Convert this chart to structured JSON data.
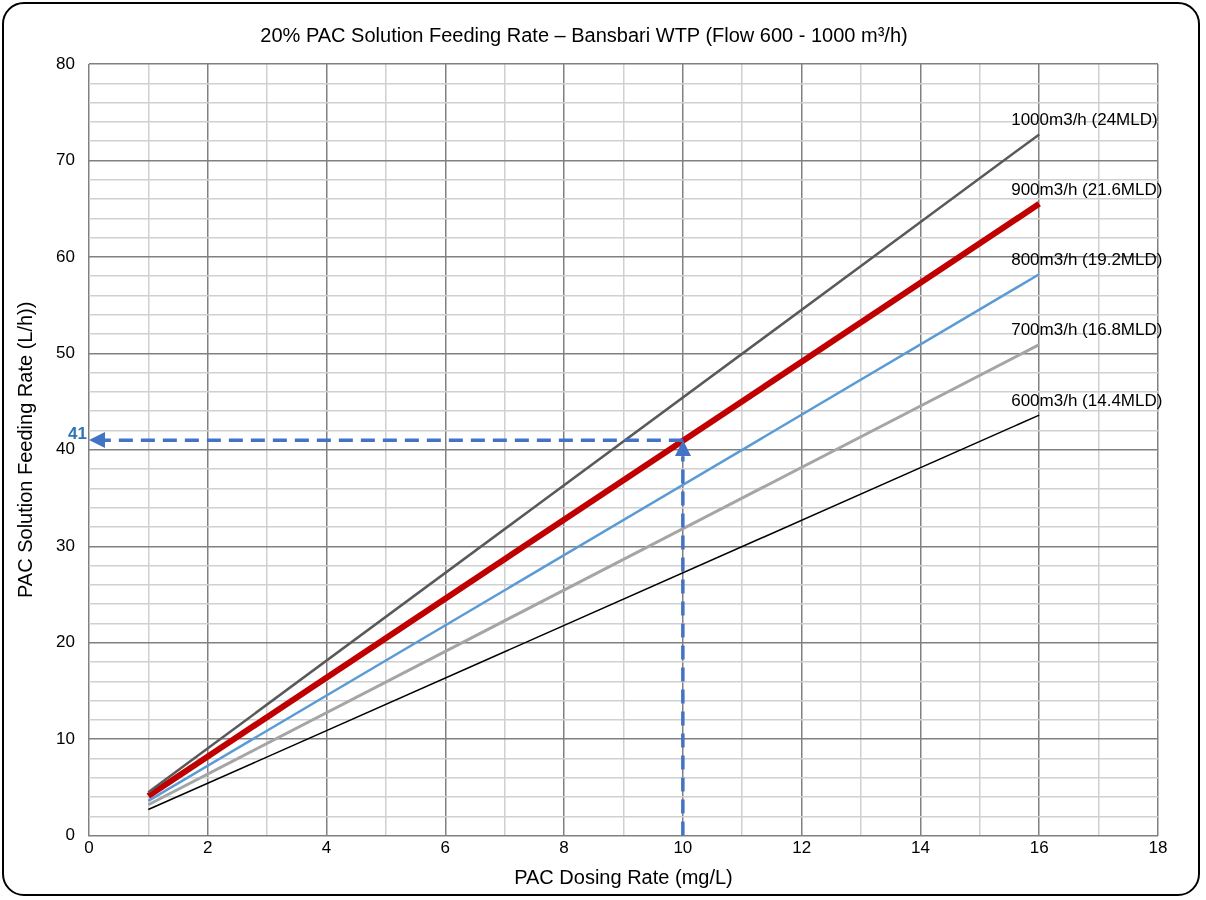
{
  "chart_data": {
    "type": "line",
    "title": "20% PAC Solution Feeding Rate – Bansbari WTP (Flow 600 - 1000 m³/h)",
    "xlabel": "PAC Dosing Rate (mg/L)",
    "ylabel": "PAC Solution Feeding Rate (L/h))",
    "x": [
      1,
      16
    ],
    "series": [
      {
        "name": "1000m3/h (24MLD)",
        "color": "#595959",
        "values": [
          4.5,
          72.7
        ]
      },
      {
        "name": "900m3/h (21.6MLD)",
        "color": "#c00000",
        "values": [
          4.1,
          65.5
        ]
      },
      {
        "name": "800m3/h (19.2MLD)",
        "color": "#5b9bd5",
        "values": [
          3.6,
          58.2
        ]
      },
      {
        "name": "700m3/h (16.8MLD)",
        "color": "#a5a5a5",
        "values": [
          3.2,
          50.9
        ]
      },
      {
        "name": "600m3/h (14.4MLD)",
        "color": "#000000",
        "values": [
          2.7,
          43.6
        ]
      }
    ],
    "ref_lines": [
      {
        "axis": "x",
        "value": 10,
        "color": "#4472c4",
        "line_style": "dashed"
      },
      {
        "axis": "y",
        "value": 41,
        "label": "41",
        "color": "#4472c4",
        "line_style": "dashed"
      }
    ],
    "xlim": [
      0,
      18
    ],
    "xticks": [
      0,
      {
        "value": 1,
        "label": null
      },
      2,
      {
        "value": 3,
        "label": null
      },
      4,
      {
        "value": 5,
        "label": null
      },
      6,
      {
        "value": 7,
        "label": null
      },
      8,
      {
        "value": 9,
        "label": null
      },
      10,
      {
        "value": 11,
        "label": null
      },
      12,
      {
        "value": 13,
        "label": null
      },
      14,
      {
        "value": 15,
        "label": null
      },
      16,
      {
        "value": 17,
        "label": null
      },
      18
    ],
    "ylim": [
      0,
      80
    ],
    "yticks": [
      0,
      {
        "value": 2,
        "label": null
      },
      {
        "value": 4,
        "label": null
      },
      {
        "value": 6,
        "label": null
      },
      {
        "value": 8,
        "label": null
      },
      10,
      {
        "value": 12,
        "label": null
      },
      {
        "value": 14,
        "label": null
      },
      {
        "value": 16,
        "label": null
      },
      {
        "value": 18,
        "label": null
      },
      20,
      {
        "value": 22,
        "label": null
      },
      {
        "value": 24,
        "label": null
      },
      {
        "value": 26,
        "label": null
      },
      {
        "value": 28,
        "label": null
      },
      30,
      {
        "value": 32,
        "label": null
      },
      {
        "value": 34,
        "label": null
      },
      {
        "value": 36,
        "label": null
      },
      {
        "value": 38,
        "label": null
      },
      40,
      {
        "value": 42,
        "label": null
      },
      {
        "value": 44,
        "label": null
      },
      {
        "value": 46,
        "label": null
      },
      {
        "value": 48,
        "label": null
      },
      50,
      {
        "value": 52,
        "label": null
      },
      {
        "value": 54,
        "label": null
      },
      {
        "value": 56,
        "label": null
      },
      {
        "value": 58,
        "label": null
      },
      60,
      {
        "value": 62,
        "label": null
      },
      {
        "value": 64,
        "label": null
      },
      {
        "value": 66,
        "label": null
      },
      {
        "value": 68,
        "label": null
      },
      70,
      {
        "value": 72,
        "label": null
      },
      {
        "value": 74,
        "label": null
      },
      {
        "value": 76,
        "label": null
      },
      {
        "value": 78,
        "label": null
      },
      80
    ],
    "grid": true,
    "legend": false,
    "marker": "none"
  }
}
